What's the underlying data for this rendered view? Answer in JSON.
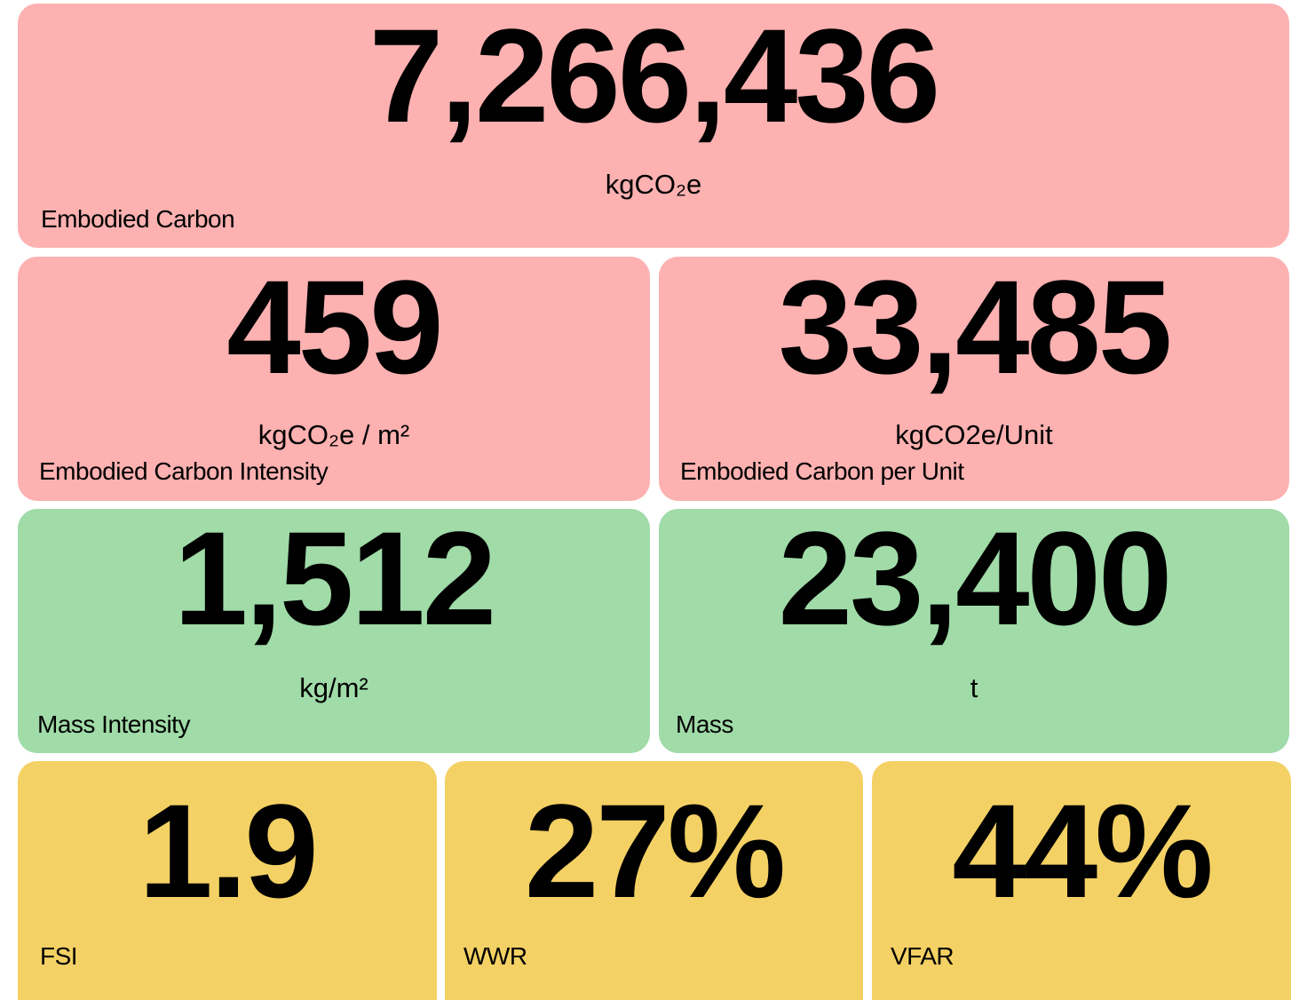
{
  "cards": [
    {
      "value": "7,266,436",
      "unit": "kgCO₂e",
      "label": "Embodied Carbon"
    },
    {
      "value": "459",
      "unit": "kgCO₂e / m²",
      "label": "Embodied Carbon Intensity"
    },
    {
      "value": "33,485",
      "unit": "kgCO2e/Unit",
      "label": "Embodied Carbon per Unit"
    },
    {
      "value": "1,512",
      "unit": "kg/m²",
      "label": "Mass Intensity"
    },
    {
      "value": "23,400",
      "unit": "t",
      "label": "Mass"
    },
    {
      "value": "1.9",
      "label": "FSI"
    },
    {
      "value": "27%",
      "label": "WWR"
    },
    {
      "value": "44%",
      "label": "VFAR"
    }
  ]
}
